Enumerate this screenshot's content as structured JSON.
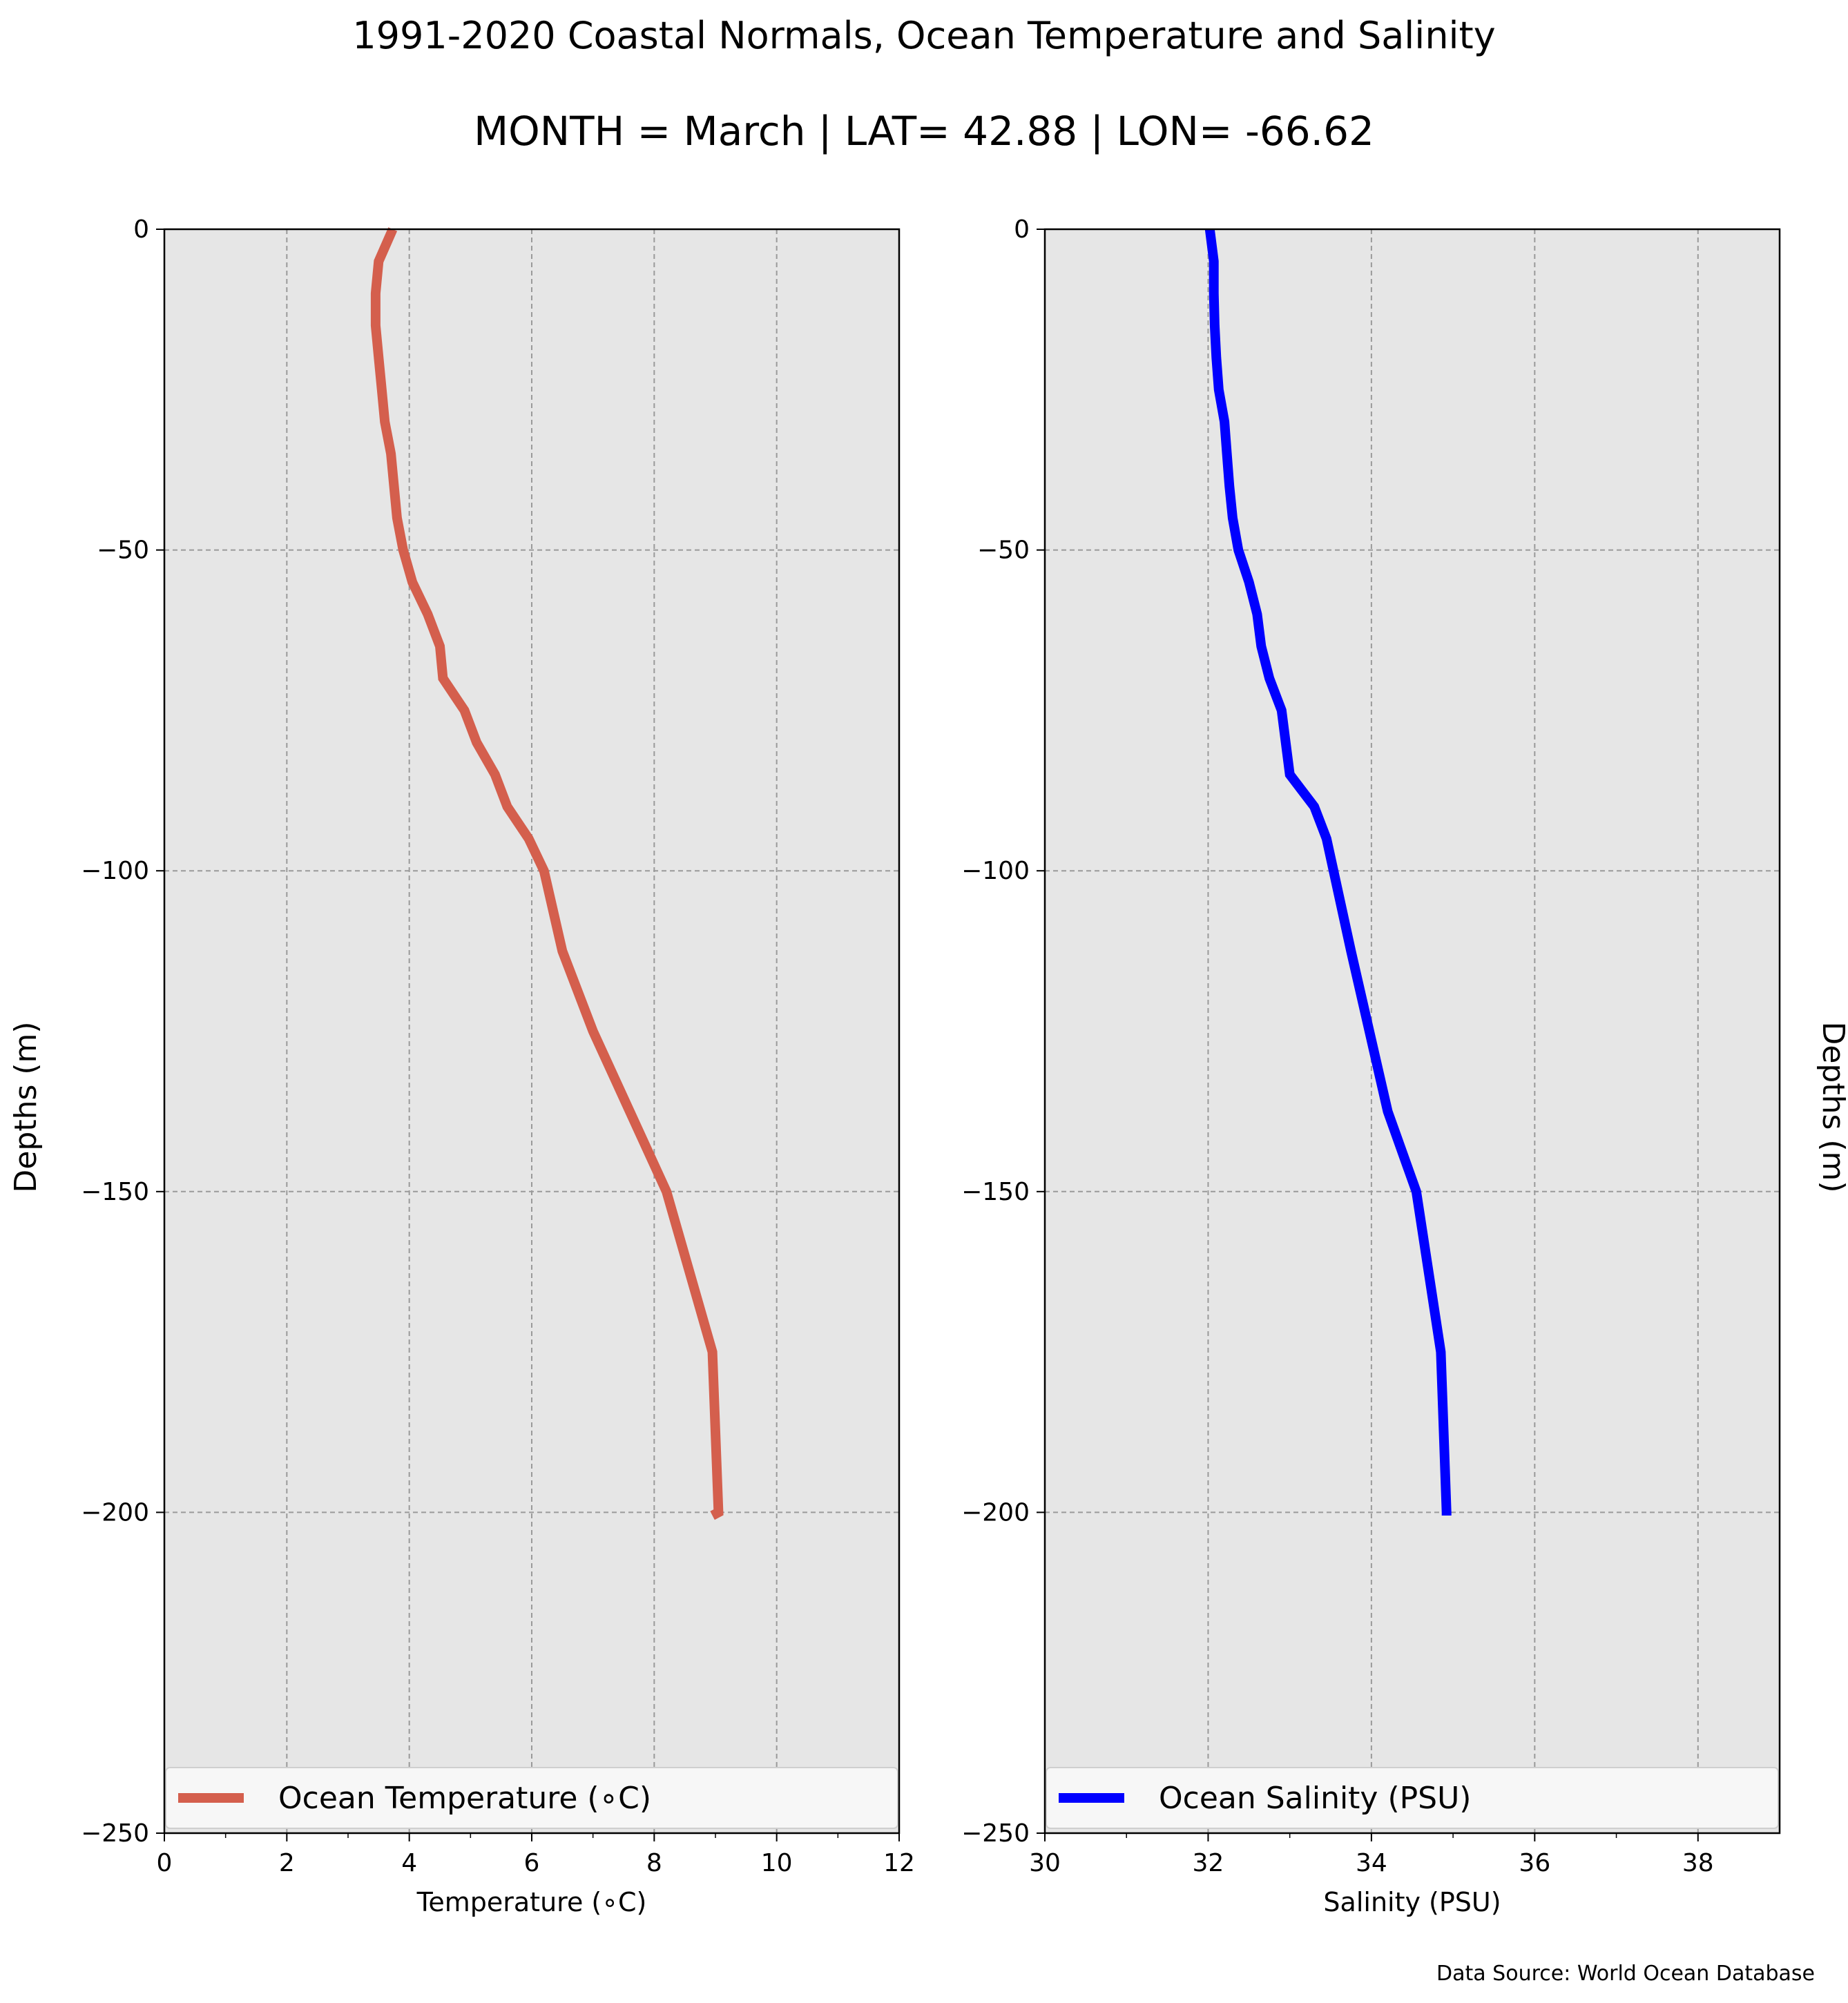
{
  "figure": {
    "title": "1991-2020 Coastal Normals, Ocean Temperature and Salinity",
    "subtitle": "MONTH = March | LAT= 42.88 | LON= -66.62",
    "source": "Data Source: World Ocean Database"
  },
  "chart_data": [
    {
      "type": "line",
      "xlabel": "Temperature (∘C)",
      "ylabel": "Depths (m)",
      "xlim": [
        0,
        12
      ],
      "ylim": [
        -250,
        0
      ],
      "xticks": [
        "0",
        "2",
        "4",
        "6",
        "8",
        "10",
        "12"
      ],
      "yticks": [
        "0",
        "−50",
        "−100",
        "−150",
        "−200",
        "−250"
      ],
      "grid": true,
      "legend_position": "bottom",
      "series": [
        {
          "name": "Ocean Temperature (∘C)",
          "color": "#d45f4d",
          "x": [
            3.73,
            3.5,
            3.45,
            3.45,
            3.5,
            3.55,
            3.6,
            3.7,
            3.75,
            3.8,
            3.9,
            4.05,
            4.3,
            4.5,
            4.55,
            4.9,
            5.1,
            5.4,
            5.6,
            5.95,
            6.2,
            6.5,
            7.0,
            7.6,
            8.2,
            8.95,
            9.05,
            8.95
          ],
          "y": [
            0,
            -5,
            -10,
            -15,
            -20,
            -25,
            -30,
            -35,
            -40,
            -45,
            -50,
            -55,
            -60,
            -65,
            -70,
            -75,
            -80,
            -85,
            -90,
            -95,
            -100,
            -112.5,
            -125,
            -137.5,
            -150,
            -175,
            -200,
            -200.5
          ]
        }
      ]
    },
    {
      "type": "line",
      "xlabel": "Salinity (PSU)",
      "ylabel": "Depths (m)",
      "xlim": [
        30,
        39
      ],
      "ylim": [
        -250,
        0
      ],
      "xticks": [
        "30",
        "32",
        "34",
        "36",
        "38"
      ],
      "yticks": [
        "0",
        "−50",
        "−100",
        "−150",
        "−200",
        "−250"
      ],
      "grid": true,
      "legend_position": "bottom",
      "series": [
        {
          "name": "Ocean Salinity (PSU)",
          "color": "#0000ff",
          "x": [
            32.02,
            32.07,
            32.07,
            32.08,
            32.1,
            32.13,
            32.2,
            32.23,
            32.26,
            32.3,
            32.37,
            32.5,
            32.6,
            32.65,
            32.75,
            32.9,
            33.0,
            33.3,
            33.45,
            33.75,
            34.2,
            34.55,
            34.85,
            34.92,
            34.92
          ],
          "y": [
            0,
            -5,
            -10,
            -15,
            -20,
            -25,
            -30,
            -35,
            -40,
            -45,
            -50,
            -55,
            -60,
            -65,
            -70,
            -75,
            -85,
            -90,
            -95,
            -112.5,
            -137.5,
            -150,
            -175,
            -200,
            -200.5
          ]
        }
      ]
    }
  ]
}
